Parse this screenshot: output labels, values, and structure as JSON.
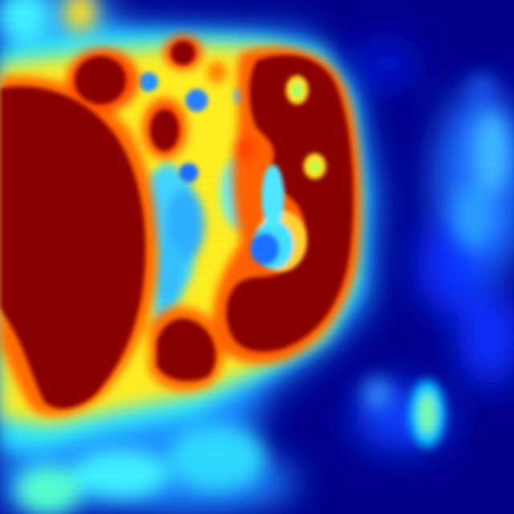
{
  "image": {
    "kind": "false-color heatmap (jet colormap)",
    "colormap": [
      "#00007f",
      "#0000ff",
      "#007fff",
      "#00ffff",
      "#7fff7f",
      "#ffff00",
      "#ff7f00",
      "#ff0000",
      "#7f0000"
    ],
    "background_color": "#00008b",
    "regions": [
      {
        "name": "left-hot-region",
        "level": "max"
      },
      {
        "name": "center-hot-region",
        "level": "max"
      },
      {
        "name": "lower-hot-region",
        "level": "max"
      },
      {
        "name": "upper-hot-blob",
        "level": "max"
      },
      {
        "name": "right-faint-field",
        "level": "low"
      },
      {
        "name": "bottom-right-spot",
        "level": "mid"
      }
    ]
  }
}
